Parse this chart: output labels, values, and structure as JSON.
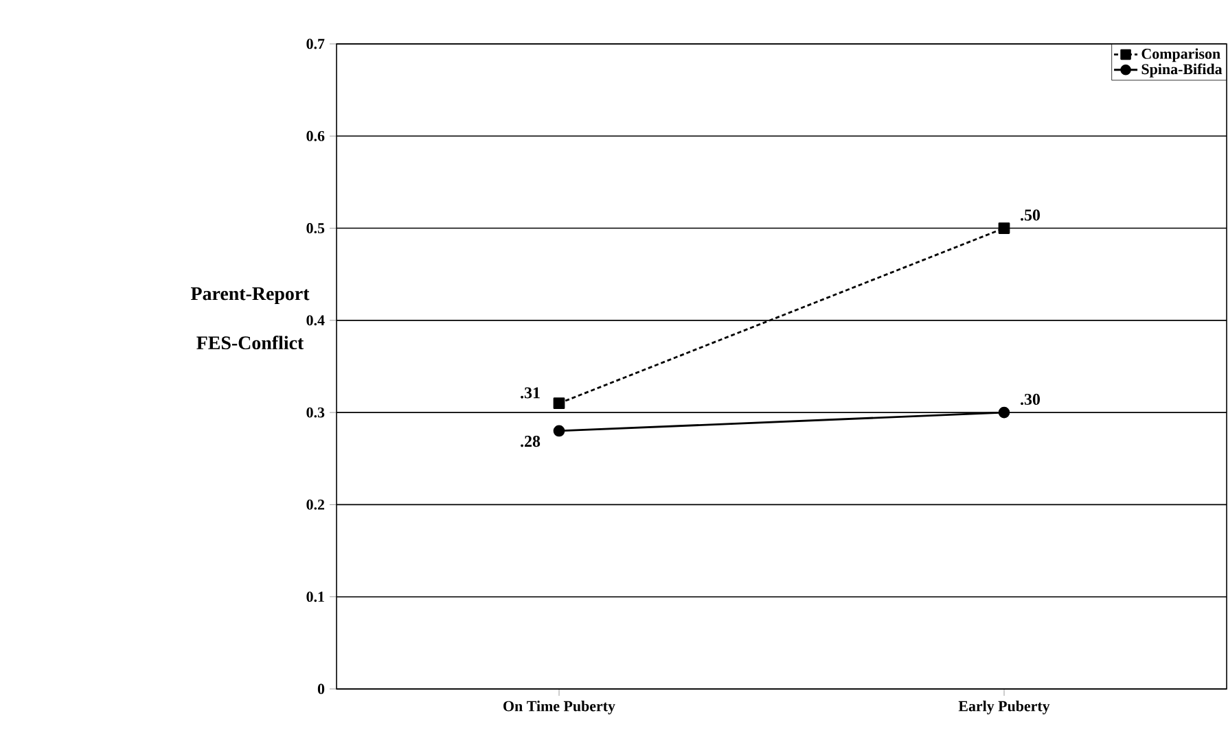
{
  "chart_data": {
    "type": "line",
    "ylabel": "Parent-Report\nFES-Conflict",
    "categories": [
      "On Time Puberty",
      "Early Puberty"
    ],
    "series": [
      {
        "name": "Comparison",
        "color": "#000000",
        "values": [
          0.31,
          0.5
        ],
        "value_labels": [
          ".31",
          ".50"
        ],
        "marker": "square",
        "line_style": "dashed"
      },
      {
        "name": "Spina-Bifida",
        "color": "#000000",
        "values": [
          0.28,
          0.3
        ],
        "value_labels": [
          ".28",
          ".30"
        ],
        "marker": "circle",
        "line_style": "solid"
      }
    ],
    "ylim": [
      0,
      0.7
    ],
    "yticks": [
      0,
      0.1,
      0.2,
      0.3,
      0.4,
      0.5,
      0.6,
      0.7
    ],
    "grid": "y",
    "legend": "top right"
  }
}
